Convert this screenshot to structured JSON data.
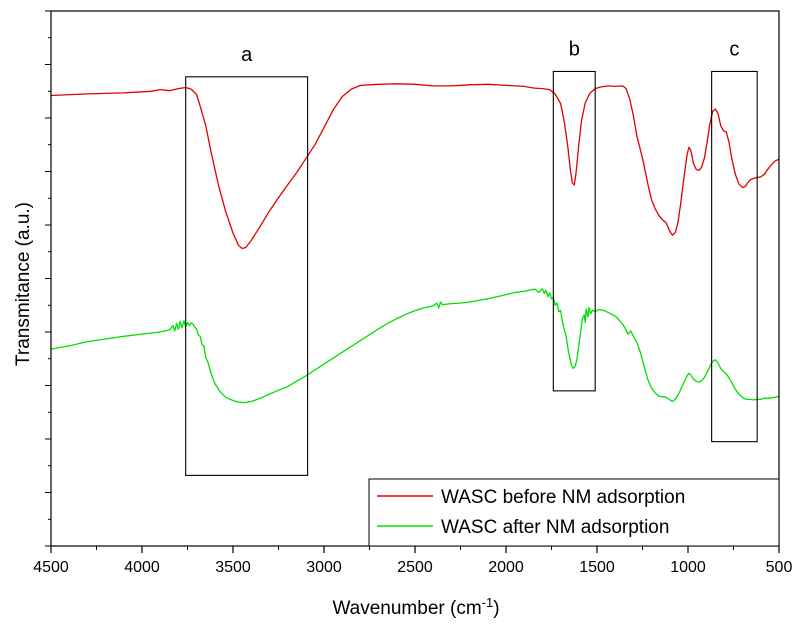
{
  "chart_data": {
    "type": "line",
    "xlabel": "Wavenumber (cm",
    "xlabel_sup": "-1",
    "xlabel_suffix": ")",
    "ylabel": "Transmitance (a.u.)",
    "xlim": [
      4500,
      500
    ],
    "x_reversed": true,
    "ylim": [
      0,
      100
    ],
    "y_tick_labels": false,
    "grid": false,
    "legend_position": "bottom-right",
    "x_ticks": [
      4500,
      4000,
      3500,
      3000,
      2500,
      2000,
      1500,
      1000,
      500
    ],
    "x_tick_labels": [
      "4500",
      "4000",
      "3500",
      "3000",
      "2500",
      "2000",
      "1500",
      "1000",
      "500"
    ],
    "series": [
      {
        "name": "WASC before NM adsorption",
        "color": "#e00000",
        "points": [
          [
            4500,
            84.2
          ],
          [
            4300,
            84.5
          ],
          [
            4100,
            84.7
          ],
          [
            3950,
            85.0
          ],
          [
            3900,
            85.3
          ],
          [
            3850,
            85.1
          ],
          [
            3800,
            85.5
          ],
          [
            3760,
            85.7
          ],
          [
            3730,
            85.4
          ],
          [
            3700,
            84.4
          ],
          [
            3680,
            82.2
          ],
          [
            3650,
            78.6
          ],
          [
            3620,
            73.5
          ],
          [
            3580,
            67.5
          ],
          [
            3540,
            62.5
          ],
          [
            3500,
            58.5
          ],
          [
            3470,
            56.2
          ],
          [
            3450,
            55.6
          ],
          [
            3430,
            55.8
          ],
          [
            3400,
            57.1
          ],
          [
            3350,
            59.8
          ],
          [
            3300,
            62.6
          ],
          [
            3250,
            65.1
          ],
          [
            3200,
            67.5
          ],
          [
            3150,
            69.8
          ],
          [
            3100,
            72.4
          ],
          [
            3050,
            75.0
          ],
          [
            3000,
            78.2
          ],
          [
            2950,
            81.5
          ],
          [
            2900,
            84.0
          ],
          [
            2850,
            85.4
          ],
          [
            2800,
            86.1
          ],
          [
            2700,
            86.3
          ],
          [
            2600,
            86.4
          ],
          [
            2500,
            86.3
          ],
          [
            2400,
            86.0
          ],
          [
            2300,
            86.0
          ],
          [
            2200,
            86.2
          ],
          [
            2100,
            86.3
          ],
          [
            2000,
            86.1
          ],
          [
            1950,
            86.0
          ],
          [
            1900,
            85.9
          ],
          [
            1850,
            85.6
          ],
          [
            1800,
            85.5
          ],
          [
            1760,
            85.3
          ],
          [
            1730,
            84.5
          ],
          [
            1700,
            82.7
          ],
          [
            1680,
            79.4
          ],
          [
            1660,
            74.5
          ],
          [
            1645,
            70.0
          ],
          [
            1635,
            67.8
          ],
          [
            1625,
            67.5
          ],
          [
            1615,
            69.8
          ],
          [
            1600,
            75.0
          ],
          [
            1585,
            79.5
          ],
          [
            1565,
            82.8
          ],
          [
            1540,
            84.6
          ],
          [
            1510,
            85.5
          ],
          [
            1480,
            85.8
          ],
          [
            1440,
            86.0
          ],
          [
            1400,
            85.9
          ],
          [
            1360,
            86.0
          ],
          [
            1340,
            85.5
          ],
          [
            1320,
            83.5
          ],
          [
            1300,
            80.4
          ],
          [
            1280,
            76.5
          ],
          [
            1250,
            72.5
          ],
          [
            1220,
            67.5
          ],
          [
            1200,
            64.7
          ],
          [
            1180,
            63.0
          ],
          [
            1160,
            61.8
          ],
          [
            1140,
            61.0
          ],
          [
            1120,
            60.4
          ],
          [
            1100,
            58.8
          ],
          [
            1085,
            58.1
          ],
          [
            1070,
            58.6
          ],
          [
            1055,
            60.5
          ],
          [
            1040,
            64.0
          ],
          [
            1020,
            69.5
          ],
          [
            1005,
            73.2
          ],
          [
            995,
            74.5
          ],
          [
            985,
            74.0
          ],
          [
            970,
            71.5
          ],
          [
            955,
            70.4
          ],
          [
            940,
            70.2
          ],
          [
            925,
            70.8
          ],
          [
            910,
            72.5
          ],
          [
            895,
            75.5
          ],
          [
            880,
            78.8
          ],
          [
            865,
            81.2
          ],
          [
            850,
            81.7
          ],
          [
            835,
            80.8
          ],
          [
            820,
            78.5
          ],
          [
            805,
            77.6
          ],
          [
            790,
            77.4
          ],
          [
            775,
            75.5
          ],
          [
            760,
            72.5
          ],
          [
            740,
            69.5
          ],
          [
            720,
            67.6
          ],
          [
            700,
            67.0
          ],
          [
            685,
            67.2
          ],
          [
            670,
            68.0
          ],
          [
            655,
            68.5
          ],
          [
            630,
            68.8
          ],
          [
            600,
            69.0
          ],
          [
            580,
            69.5
          ],
          [
            560,
            70.5
          ],
          [
            540,
            71.3
          ],
          [
            520,
            72.0
          ],
          [
            500,
            72.3
          ]
        ]
      },
      {
        "name": "WASC after NM adsorption",
        "color": "#00e000",
        "points": [
          [
            4500,
            36.8
          ],
          [
            4400,
            37.4
          ],
          [
            4300,
            38.2
          ],
          [
            4200,
            38.7
          ],
          [
            4100,
            39.2
          ],
          [
            4000,
            39.6
          ],
          [
            3900,
            40.0
          ],
          [
            3850,
            40.4
          ],
          [
            3830,
            41.2
          ],
          [
            3820,
            40.2
          ],
          [
            3810,
            41.6
          ],
          [
            3800,
            40.5
          ],
          [
            3790,
            42.0
          ],
          [
            3780,
            40.8
          ],
          [
            3770,
            42.1
          ],
          [
            3760,
            41.0
          ],
          [
            3750,
            41.8
          ],
          [
            3740,
            41.2
          ],
          [
            3730,
            41.7
          ],
          [
            3720,
            41.5
          ],
          [
            3710,
            40.9
          ],
          [
            3700,
            40.5
          ],
          [
            3690,
            39.4
          ],
          [
            3680,
            39.2
          ],
          [
            3670,
            37.6
          ],
          [
            3660,
            37.4
          ],
          [
            3650,
            35.2
          ],
          [
            3640,
            34.6
          ],
          [
            3620,
            32.2
          ],
          [
            3600,
            30.4
          ],
          [
            3570,
            28.8
          ],
          [
            3540,
            27.8
          ],
          [
            3500,
            27.2
          ],
          [
            3470,
            26.9
          ],
          [
            3440,
            26.8
          ],
          [
            3400,
            27.0
          ],
          [
            3350,
            27.6
          ],
          [
            3300,
            28.4
          ],
          [
            3250,
            29.1
          ],
          [
            3200,
            29.8
          ],
          [
            3150,
            30.8
          ],
          [
            3100,
            31.8
          ],
          [
            3050,
            32.9
          ],
          [
            3000,
            34.0
          ],
          [
            2950,
            35.1
          ],
          [
            2900,
            36.2
          ],
          [
            2850,
            37.3
          ],
          [
            2800,
            38.4
          ],
          [
            2750,
            39.5
          ],
          [
            2700,
            40.6
          ],
          [
            2650,
            41.6
          ],
          [
            2600,
            42.5
          ],
          [
            2550,
            43.3
          ],
          [
            2500,
            44.0
          ],
          [
            2450,
            44.5
          ],
          [
            2400,
            44.9
          ],
          [
            2380,
            45.4
          ],
          [
            2370,
            44.5
          ],
          [
            2360,
            45.6
          ],
          [
            2350,
            45.1
          ],
          [
            2300,
            45.3
          ],
          [
            2250,
            45.4
          ],
          [
            2200,
            45.6
          ],
          [
            2150,
            45.9
          ],
          [
            2100,
            46.2
          ],
          [
            2050,
            46.6
          ],
          [
            2000,
            47.0
          ],
          [
            1950,
            47.4
          ],
          [
            1900,
            47.6
          ],
          [
            1860,
            47.9
          ],
          [
            1840,
            48.0
          ],
          [
            1820,
            47.4
          ],
          [
            1800,
            48.1
          ],
          [
            1790,
            47.2
          ],
          [
            1780,
            47.8
          ],
          [
            1770,
            46.6
          ],
          [
            1760,
            47.3
          ],
          [
            1750,
            46.2
          ],
          [
            1740,
            46.5
          ],
          [
            1730,
            45.0
          ],
          [
            1720,
            45.4
          ],
          [
            1710,
            43.8
          ],
          [
            1700,
            44.0
          ],
          [
            1690,
            42.0
          ],
          [
            1680,
            40.5
          ],
          [
            1670,
            39.2
          ],
          [
            1660,
            37.0
          ],
          [
            1650,
            35.2
          ],
          [
            1640,
            33.8
          ],
          [
            1630,
            33.2
          ],
          [
            1620,
            33.6
          ],
          [
            1610,
            35.0
          ],
          [
            1600,
            37.4
          ],
          [
            1590,
            40.0
          ],
          [
            1580,
            42.5
          ],
          [
            1570,
            43.2
          ],
          [
            1565,
            41.8
          ],
          [
            1560,
            44.3
          ],
          [
            1550,
            42.8
          ],
          [
            1545,
            44.6
          ],
          [
            1535,
            43.4
          ],
          [
            1525,
            44.1
          ],
          [
            1510,
            43.8
          ],
          [
            1490,
            44.2
          ],
          [
            1460,
            44.0
          ],
          [
            1430,
            43.5
          ],
          [
            1400,
            43.0
          ],
          [
            1380,
            42.3
          ],
          [
            1360,
            41.5
          ],
          [
            1345,
            40.7
          ],
          [
            1330,
            39.6
          ],
          [
            1315,
            40.2
          ],
          [
            1300,
            39.2
          ],
          [
            1280,
            38.0
          ],
          [
            1260,
            36.0
          ],
          [
            1240,
            33.5
          ],
          [
            1220,
            31.0
          ],
          [
            1200,
            29.5
          ],
          [
            1180,
            28.6
          ],
          [
            1160,
            28.0
          ],
          [
            1140,
            27.9
          ],
          [
            1120,
            27.8
          ],
          [
            1100,
            27.3
          ],
          [
            1085,
            27.0
          ],
          [
            1070,
            27.4
          ],
          [
            1050,
            28.5
          ],
          [
            1030,
            30.0
          ],
          [
            1010,
            31.5
          ],
          [
            995,
            32.3
          ],
          [
            985,
            32.0
          ],
          [
            970,
            31.2
          ],
          [
            955,
            30.8
          ],
          [
            940,
            30.6
          ],
          [
            925,
            30.9
          ],
          [
            910,
            31.5
          ],
          [
            895,
            32.5
          ],
          [
            880,
            33.5
          ],
          [
            865,
            34.5
          ],
          [
            850,
            34.8
          ],
          [
            835,
            34.2
          ],
          [
            820,
            33.2
          ],
          [
            805,
            32.6
          ],
          [
            790,
            32.2
          ],
          [
            775,
            31.4
          ],
          [
            760,
            30.6
          ],
          [
            745,
            29.6
          ],
          [
            730,
            28.8
          ],
          [
            715,
            28.2
          ],
          [
            700,
            27.8
          ],
          [
            680,
            27.4
          ],
          [
            660,
            27.4
          ],
          [
            640,
            27.3
          ],
          [
            620,
            27.4
          ],
          [
            600,
            27.4
          ],
          [
            580,
            27.6
          ],
          [
            560,
            27.6
          ],
          [
            540,
            27.7
          ],
          [
            520,
            27.8
          ],
          [
            500,
            28.0
          ]
        ]
      }
    ],
    "annotations": [
      {
        "label": "a",
        "x_range": [
          3760,
          3090
        ],
        "y_range": [
          13.2,
          87.7
        ]
      },
      {
        "label": "b",
        "x_range": [
          1740,
          1510
        ],
        "y_range": [
          29.0,
          88.7
        ]
      },
      {
        "label": "c",
        "x_range": [
          870,
          620
        ],
        "y_range": [
          19.5,
          88.7
        ]
      }
    ]
  }
}
